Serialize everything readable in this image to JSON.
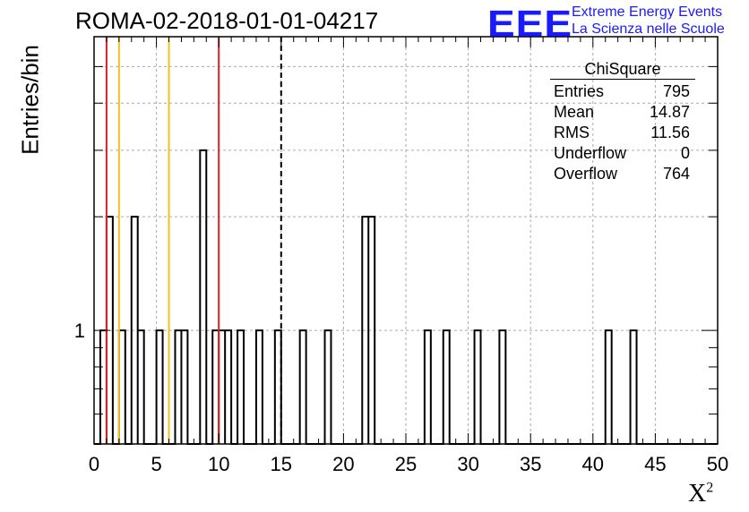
{
  "title": "ROMA-02-2018-01-01-04217",
  "logo": {
    "mark": "EEE",
    "line1": "Extreme Energy Events",
    "line2": "La Scienza nelle Scuole",
    "color": "#1a1aff"
  },
  "stats": {
    "name": "ChiSquare",
    "rows": [
      {
        "label": "Entries",
        "value": "795"
      },
      {
        "label": "Mean",
        "value": "14.87"
      },
      {
        "label": "RMS",
        "value": "11.56"
      },
      {
        "label": "Underflow",
        "value": "0"
      },
      {
        "label": "Overflow",
        "value": "764"
      }
    ]
  },
  "chart_data": {
    "type": "bar",
    "title": "ROMA-02-2018-01-01-04217",
    "xlabel": "X",
    "xlabel_sup": "2",
    "ylabel": "Entries/bin",
    "xlim": [
      0,
      50
    ],
    "y_log": true,
    "ylim": [
      0.5,
      6
    ],
    "grid": true,
    "bin_width": 0.5,
    "xticks": [
      0,
      5,
      10,
      15,
      20,
      25,
      30,
      35,
      40,
      45,
      50
    ],
    "yticks": [
      1
    ],
    "bins": [
      {
        "x": 0.5,
        "y": 1
      },
      {
        "x": 1.0,
        "y": 2
      },
      {
        "x": 2.0,
        "y": 1
      },
      {
        "x": 3.0,
        "y": 2
      },
      {
        "x": 3.5,
        "y": 1
      },
      {
        "x": 5.0,
        "y": 1
      },
      {
        "x": 6.5,
        "y": 1
      },
      {
        "x": 7.0,
        "y": 1
      },
      {
        "x": 8.5,
        "y": 3
      },
      {
        "x": 9.5,
        "y": 1
      },
      {
        "x": 10.0,
        "y": 1
      },
      {
        "x": 10.5,
        "y": 1
      },
      {
        "x": 11.5,
        "y": 1
      },
      {
        "x": 13.0,
        "y": 1
      },
      {
        "x": 14.5,
        "y": 1
      },
      {
        "x": 16.5,
        "y": 1
      },
      {
        "x": 18.5,
        "y": 1
      },
      {
        "x": 21.5,
        "y": 2
      },
      {
        "x": 22.0,
        "y": 2
      },
      {
        "x": 26.5,
        "y": 1
      },
      {
        "x": 28.0,
        "y": 1
      },
      {
        "x": 30.5,
        "y": 1
      },
      {
        "x": 32.5,
        "y": 1
      },
      {
        "x": 41.0,
        "y": 1
      },
      {
        "x": 43.0,
        "y": 1
      }
    ],
    "vlines": [
      {
        "x": 1,
        "color": "#dd2222",
        "style": "solid"
      },
      {
        "x": 2,
        "color": "#f0c020",
        "style": "solid"
      },
      {
        "x": 6,
        "color": "#f0c020",
        "style": "solid"
      },
      {
        "x": 10,
        "color": "#dd2222",
        "style": "solid"
      },
      {
        "x": 15,
        "color": "#000000",
        "style": "dashed"
      }
    ]
  }
}
